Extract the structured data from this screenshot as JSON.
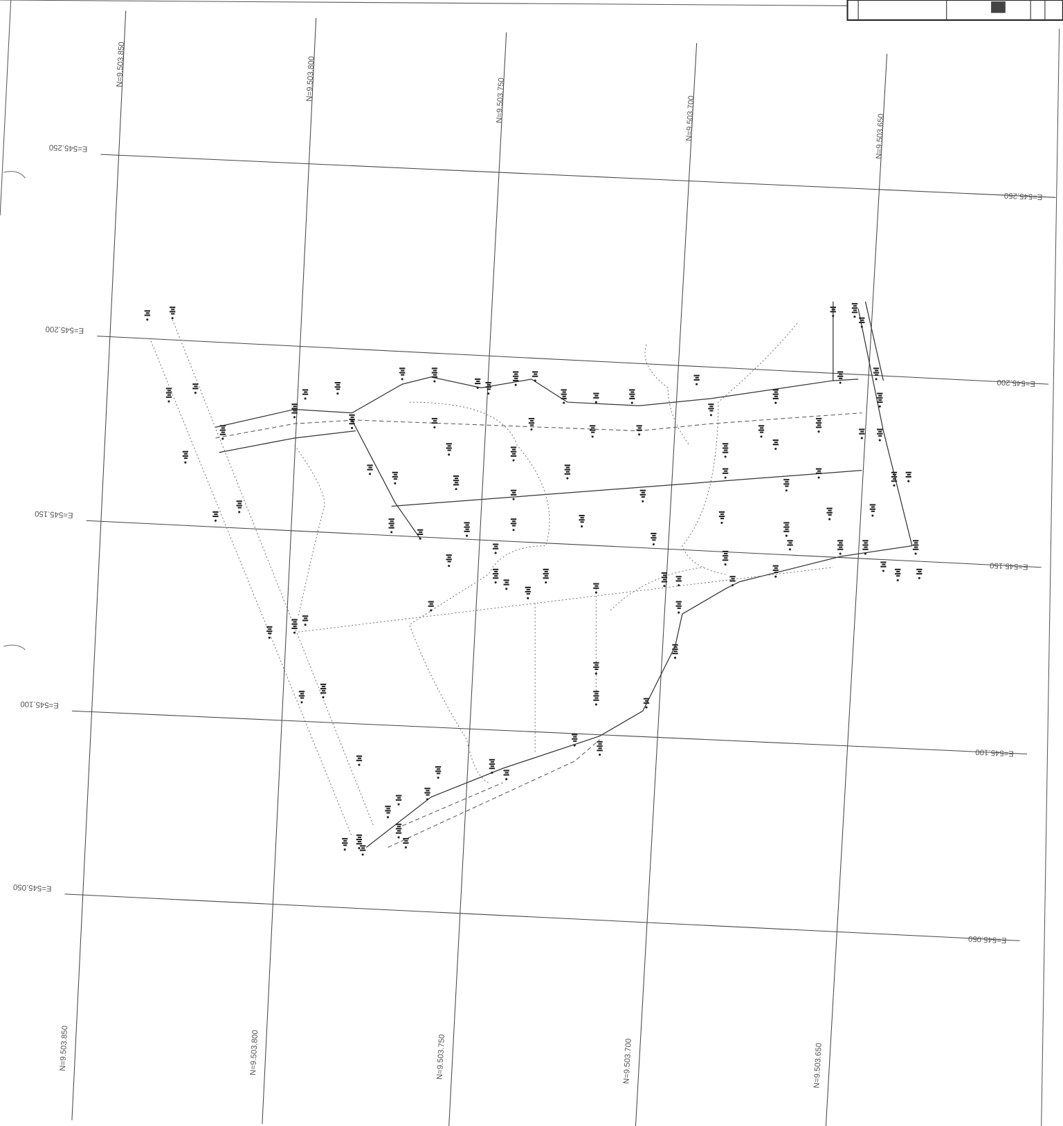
{
  "grid": {
    "northing_lines": [
      {
        "top_label": "N=9.503.850",
        "bottom_label": "N=9.503.850"
      },
      {
        "top_label": "N=9.503.800",
        "bottom_label": "N=9.503.800"
      },
      {
        "top_label": "N=9.503.750",
        "bottom_label": "N=9.503.750"
      },
      {
        "top_label": "N=9.503.700",
        "bottom_label": "N=9.503.700"
      },
      {
        "top_label": "N=9.503.650",
        "bottom_label": "N=9.503.650"
      }
    ],
    "easting_lines": [
      {
        "left_label": "E=545.250",
        "right_label": "E=545.250"
      },
      {
        "left_label": "E=545.200",
        "right_label": "E=545.200"
      },
      {
        "left_label": "E=545.150",
        "right_label": "E=545.150"
      },
      {
        "left_label": "E=545.100",
        "right_label": "E=545.100"
      },
      {
        "left_label": "E=545.050",
        "right_label": "E=545.050"
      }
    ]
  }
}
